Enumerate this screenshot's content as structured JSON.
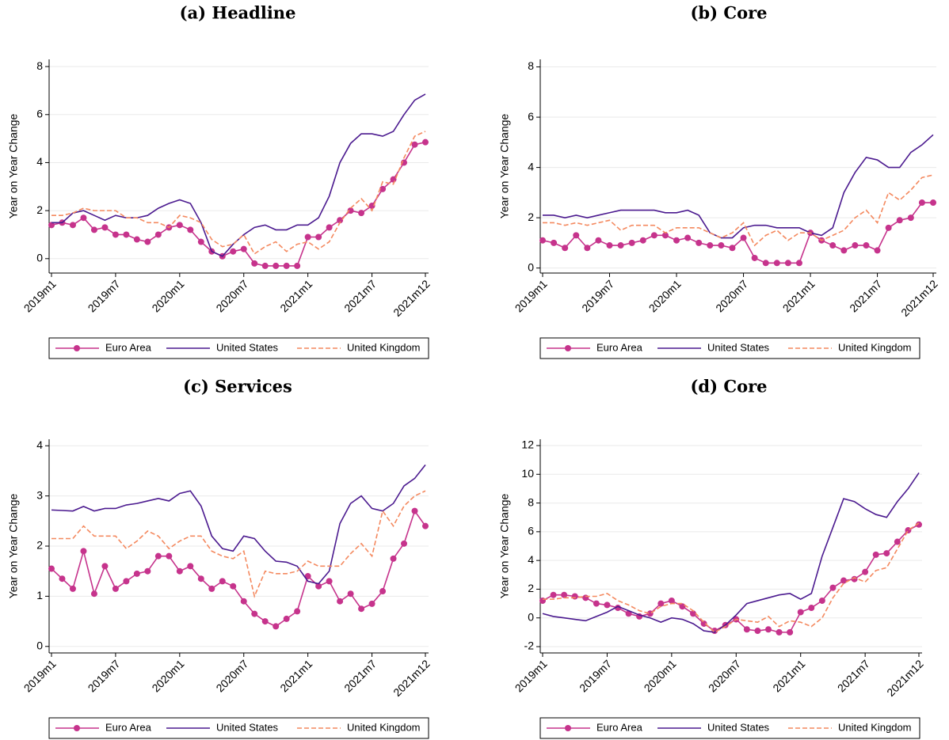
{
  "chart_data": [
    {
      "type": "line",
      "title": "(a) Headline",
      "ylabel": "Year on Year Change",
      "categories": [
        "2019m1",
        null,
        null,
        null,
        null,
        null,
        "2019m7",
        null,
        null,
        null,
        null,
        null,
        "2020m1",
        null,
        null,
        null,
        null,
        null,
        "2020m7",
        null,
        null,
        null,
        null,
        null,
        "2021m1",
        null,
        null,
        null,
        null,
        null,
        "2021m7",
        null,
        null,
        null,
        null,
        "2021m12"
      ],
      "series": [
        {
          "name": "Euro Area",
          "color": "#c6338c",
          "style": "marker",
          "values": [
            1.4,
            1.5,
            1.4,
            1.7,
            1.2,
            1.3,
            1.0,
            1.0,
            0.8,
            0.7,
            1.0,
            1.3,
            1.4,
            1.2,
            0.7,
            0.3,
            0.1,
            0.3,
            0.4,
            -0.2,
            -0.3,
            -0.3,
            -0.3,
            -0.3,
            0.9,
            0.9,
            1.3,
            1.6,
            2.0,
            1.9,
            2.2,
            2.9,
            3.3,
            4.0,
            4.75,
            4.85
          ]
        },
        {
          "name": "United States",
          "color": "#4b1a8f",
          "style": "solid",
          "values": [
            1.5,
            1.5,
            1.9,
            2.0,
            1.8,
            1.6,
            1.8,
            1.7,
            1.7,
            1.8,
            2.1,
            2.3,
            2.45,
            2.3,
            1.5,
            0.3,
            0.1,
            0.6,
            1.0,
            1.3,
            1.4,
            1.2,
            1.2,
            1.4,
            1.4,
            1.7,
            2.6,
            4.0,
            4.8,
            5.2,
            5.2,
            5.1,
            5.3,
            6.0,
            6.6,
            6.85
          ]
        },
        {
          "name": "United Kingdom",
          "color": "#f4895f",
          "style": "dashed",
          "values": [
            1.8,
            1.8,
            1.9,
            2.1,
            2.0,
            2.0,
            2.0,
            1.7,
            1.7,
            1.5,
            1.5,
            1.3,
            1.8,
            1.7,
            1.5,
            0.8,
            0.5,
            0.6,
            1.0,
            0.2,
            0.5,
            0.7,
            0.3,
            0.6,
            0.7,
            0.4,
            0.7,
            1.5,
            2.1,
            2.5,
            2.0,
            3.2,
            3.1,
            4.2,
            5.1,
            5.3
          ]
        }
      ],
      "ylim": [
        -0.6,
        8.3
      ],
      "yticks": [
        0,
        2,
        4,
        6,
        8
      ],
      "grid": true
    },
    {
      "type": "line",
      "title": "(b) Core",
      "ylabel": "Year on Year Change",
      "categories": [
        "2019m1",
        null,
        null,
        null,
        null,
        null,
        "2019m7",
        null,
        null,
        null,
        null,
        null,
        "2020m1",
        null,
        null,
        null,
        null,
        null,
        "2020m7",
        null,
        null,
        null,
        null,
        null,
        "2021m1",
        null,
        null,
        null,
        null,
        null,
        "2021m7",
        null,
        null,
        null,
        null,
        "2021m12"
      ],
      "series": [
        {
          "name": "Euro Area",
          "color": "#c6338c",
          "style": "marker",
          "values": [
            1.1,
            1.0,
            0.8,
            1.3,
            0.8,
            1.1,
            0.9,
            0.9,
            1.0,
            1.1,
            1.3,
            1.3,
            1.1,
            1.2,
            1.0,
            0.9,
            0.9,
            0.8,
            1.2,
            0.4,
            0.2,
            0.2,
            0.2,
            0.2,
            1.4,
            1.1,
            0.9,
            0.7,
            0.9,
            0.9,
            0.7,
            1.6,
            1.9,
            2.0,
            2.6,
            2.6
          ]
        },
        {
          "name": "United States",
          "color": "#4b1a8f",
          "style": "solid",
          "values": [
            2.1,
            2.1,
            2.0,
            2.1,
            2.0,
            2.1,
            2.2,
            2.3,
            2.3,
            2.3,
            2.3,
            2.2,
            2.2,
            2.3,
            2.1,
            1.4,
            1.2,
            1.2,
            1.6,
            1.7,
            1.7,
            1.6,
            1.6,
            1.6,
            1.4,
            1.3,
            1.6,
            3.0,
            3.8,
            4.4,
            4.3,
            4.0,
            4.0,
            4.6,
            4.9,
            5.3
          ]
        },
        {
          "name": "United Kingdom",
          "color": "#f4895f",
          "style": "dashed",
          "values": [
            1.8,
            1.8,
            1.7,
            1.8,
            1.7,
            1.8,
            1.9,
            1.5,
            1.7,
            1.7,
            1.7,
            1.4,
            1.6,
            1.6,
            1.6,
            1.4,
            1.2,
            1.4,
            1.8,
            0.9,
            1.3,
            1.5,
            1.1,
            1.4,
            1.4,
            1.1,
            1.3,
            1.5,
            2.0,
            2.3,
            1.8,
            3.0,
            2.7,
            3.1,
            3.6,
            3.7
          ]
        }
      ],
      "ylim": [
        -0.2,
        8.3
      ],
      "yticks": [
        0,
        2,
        4,
        6,
        8
      ],
      "grid": true
    },
    {
      "type": "line",
      "title": "(c) Services",
      "ylabel": "Year on Year Change",
      "categories": [
        "2019m1",
        null,
        null,
        null,
        null,
        null,
        "2019m7",
        null,
        null,
        null,
        null,
        null,
        "2020m1",
        null,
        null,
        null,
        null,
        null,
        "2020m7",
        null,
        null,
        null,
        null,
        null,
        "2021m1",
        null,
        null,
        null,
        null,
        null,
        "2021m7",
        null,
        null,
        null,
        null,
        "2021m12"
      ],
      "series": [
        {
          "name": "Euro Area",
          "color": "#c6338c",
          "style": "marker",
          "values": [
            1.55,
            1.35,
            1.15,
            1.9,
            1.05,
            1.6,
            1.15,
            1.3,
            1.45,
            1.5,
            1.8,
            1.8,
            1.5,
            1.6,
            1.35,
            1.15,
            1.3,
            1.2,
            0.9,
            0.65,
            0.5,
            0.4,
            0.55,
            0.7,
            1.4,
            1.2,
            1.3,
            0.9,
            1.05,
            0.75,
            0.85,
            1.1,
            1.75,
            2.05,
            2.7,
            2.4
          ]
        },
        {
          "name": "United States",
          "color": "#4b1a8f",
          "style": "solid",
          "values": [
            2.72,
            2.71,
            2.7,
            2.79,
            2.7,
            2.75,
            2.75,
            2.82,
            2.85,
            2.9,
            2.95,
            2.9,
            3.05,
            3.1,
            2.8,
            2.2,
            1.95,
            1.9,
            2.2,
            2.15,
            1.9,
            1.7,
            1.68,
            1.6,
            1.3,
            1.25,
            1.5,
            2.45,
            2.85,
            3.0,
            2.75,
            2.7,
            2.85,
            3.2,
            3.35,
            3.62
          ]
        },
        {
          "name": "United Kingdom",
          "color": "#f4895f",
          "style": "dashed",
          "values": [
            2.15,
            2.15,
            2.15,
            2.4,
            2.2,
            2.2,
            2.2,
            1.95,
            2.1,
            2.3,
            2.2,
            1.95,
            2.1,
            2.2,
            2.2,
            1.9,
            1.8,
            1.75,
            1.9,
            1.0,
            1.5,
            1.45,
            1.45,
            1.5,
            1.7,
            1.6,
            1.6,
            1.6,
            1.85,
            2.05,
            1.8,
            2.7,
            2.4,
            2.8,
            3.0,
            3.1
          ]
        }
      ],
      "ylim": [
        -0.13,
        4.13
      ],
      "yticks": [
        0,
        1,
        2,
        3,
        4
      ],
      "grid": true
    },
    {
      "type": "line",
      "title": "(d) Core",
      "ylabel": "Year on Year Change",
      "categories": [
        "2019m1",
        null,
        null,
        null,
        null,
        null,
        "2019m7",
        null,
        null,
        null,
        null,
        null,
        "2020m1",
        null,
        null,
        null,
        null,
        null,
        "2020m7",
        null,
        null,
        null,
        null,
        null,
        "2021m1",
        null,
        null,
        null,
        null,
        null,
        "2021m7",
        null,
        null,
        null,
        null,
        "2021m12"
      ],
      "series": [
        {
          "name": "Euro Area",
          "color": "#c6338c",
          "style": "marker",
          "values": [
            1.2,
            1.6,
            1.6,
            1.5,
            1.4,
            1.0,
            0.9,
            0.7,
            0.3,
            0.1,
            0.3,
            1.0,
            1.2,
            0.8,
            0.3,
            -0.4,
            -0.9,
            -0.5,
            -0.1,
            -0.8,
            -0.9,
            -0.8,
            -1.0,
            -1.0,
            0.4,
            0.7,
            1.2,
            2.1,
            2.6,
            2.7,
            3.2,
            4.4,
            4.5,
            5.3,
            6.1,
            6.5
          ]
        },
        {
          "name": "United States",
          "color": "#4b1a8f",
          "style": "solid",
          "values": [
            0.3,
            0.1,
            0,
            -0.1,
            -0.2,
            0.1,
            0.4,
            0.8,
            0.5,
            0.2,
            0,
            -0.3,
            0,
            -0.1,
            -0.4,
            -0.9,
            -1.0,
            -0.5,
            0.2,
            1.0,
            1.2,
            1.4,
            1.6,
            1.7,
            1.3,
            1.7,
            4.3,
            6.3,
            8.3,
            8.1,
            7.6,
            7.2,
            7.0,
            8.1,
            9.0,
            10.1
          ]
        },
        {
          "name": "United Kingdom",
          "color": "#f4895f",
          "style": "dashed",
          "values": [
            1.3,
            1.3,
            1.4,
            1.4,
            1.5,
            1.5,
            1.7,
            1.2,
            0.9,
            0.5,
            0.3,
            0.8,
            1.0,
            1.0,
            0.5,
            -0.3,
            -1.0,
            -0.6,
            -0.1,
            -0.2,
            -0.3,
            0.1,
            -0.6,
            -0.2,
            -0.3,
            -0.6,
            0.0,
            1.4,
            2.4,
            2.8,
            2.5,
            3.3,
            3.5,
            4.8,
            6.1,
            6.6
          ]
        }
      ],
      "ylim": [
        -2.44,
        12.44
      ],
      "yticks": [
        -2,
        0,
        2,
        4,
        6,
        8,
        10,
        12
      ],
      "grid": true
    }
  ]
}
